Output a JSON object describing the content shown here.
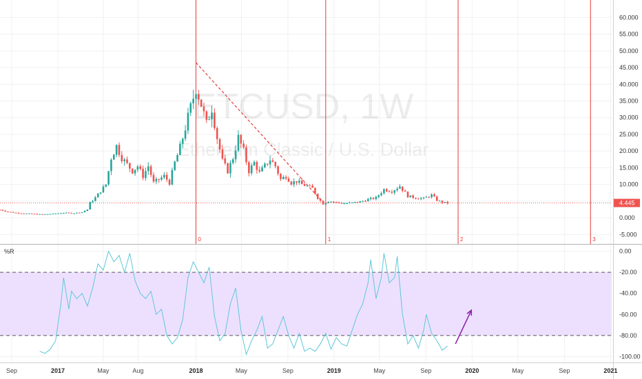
{
  "chart_data": [
    {
      "type": "candlestick",
      "symbol_watermark": "ETCUSD, 1W",
      "description_watermark": "Ethereum Classic / U.S. Dollar",
      "price_label": "4.445",
      "last_price": 4.445,
      "ylim": [
        -7,
        64
      ],
      "yticks": [
        60,
        55,
        50,
        45,
        40,
        35,
        30,
        25,
        20,
        15,
        10,
        5,
        0,
        -5
      ],
      "ytick_labels": [
        "60.000",
        "55.000",
        "50.000",
        "45.000",
        "40.000",
        "35.000",
        "30.000",
        "25.000",
        "20.000",
        "15.000",
        "10.000",
        "5.000",
        "0.000",
        "-5.000"
      ],
      "x_range": [
        "2016-08-01",
        "2021-01-04"
      ],
      "close_series": [
        [
          "2016-08-01",
          2.4
        ],
        [
          "2016-08-22",
          1.8
        ],
        [
          "2016-09-19",
          1.4
        ],
        [
          "2016-10-24",
          1.2
        ],
        [
          "2016-11-21",
          1.0
        ],
        [
          "2016-12-19",
          1.2
        ],
        [
          "2017-01-16",
          1.5
        ],
        [
          "2017-02-13",
          1.4
        ],
        [
          "2017-03-06",
          1.7
        ],
        [
          "2017-03-20",
          2.5
        ],
        [
          "2017-03-27",
          4.5
        ],
        [
          "2017-04-10",
          6.0
        ],
        [
          "2017-04-24",
          8.0
        ],
        [
          "2017-05-08",
          10.0
        ],
        [
          "2017-05-22",
          18.0
        ],
        [
          "2017-06-05",
          21.5
        ],
        [
          "2017-06-19",
          18.0
        ],
        [
          "2017-07-03",
          16.0
        ],
        [
          "2017-07-17",
          14.0
        ],
        [
          "2017-07-31",
          15.5
        ],
        [
          "2017-08-14",
          12.5
        ],
        [
          "2017-08-28",
          15.5
        ],
        [
          "2017-09-11",
          10.5
        ],
        [
          "2017-09-25",
          11.5
        ],
        [
          "2017-10-09",
          12.5
        ],
        [
          "2017-10-23",
          10.5
        ],
        [
          "2017-11-06",
          16.5
        ],
        [
          "2017-11-20",
          21.0
        ],
        [
          "2017-12-04",
          27.0
        ],
        [
          "2017-12-18",
          33.0
        ],
        [
          "2018-01-01",
          39.0
        ],
        [
          "2018-01-15",
          34.0
        ],
        [
          "2018-01-29",
          28.0
        ],
        [
          "2018-02-12",
          33.0
        ],
        [
          "2018-02-26",
          24.0
        ],
        [
          "2018-03-12",
          17.0
        ],
        [
          "2018-03-26",
          14.0
        ],
        [
          "2018-04-09",
          18.0
        ],
        [
          "2018-04-23",
          24.0
        ],
        [
          "2018-05-07",
          20.0
        ],
        [
          "2018-05-21",
          14.0
        ],
        [
          "2018-06-04",
          16.5
        ],
        [
          "2018-06-18",
          13.5
        ],
        [
          "2018-07-02",
          15.5
        ],
        [
          "2018-07-16",
          17.5
        ],
        [
          "2018-07-30",
          15.5
        ],
        [
          "2018-08-13",
          11.5
        ],
        [
          "2018-08-27",
          12.5
        ],
        [
          "2018-09-10",
          10.5
        ],
        [
          "2018-09-24",
          11.0
        ],
        [
          "2018-10-08",
          10.0
        ],
        [
          "2018-10-22",
          9.5
        ],
        [
          "2018-11-05",
          8.8
        ],
        [
          "2018-11-19",
          6.0
        ],
        [
          "2018-12-03",
          4.2
        ],
        [
          "2018-12-17",
          5.0
        ],
        [
          "2019-01-07",
          4.6
        ],
        [
          "2019-01-28",
          4.3
        ],
        [
          "2019-02-18",
          4.5
        ],
        [
          "2019-03-11",
          4.8
        ],
        [
          "2019-04-01",
          5.5
        ],
        [
          "2019-04-22",
          6.0
        ],
        [
          "2019-05-13",
          8.5
        ],
        [
          "2019-06-03",
          8.0
        ],
        [
          "2019-06-24",
          9.5
        ],
        [
          "2019-07-15",
          6.5
        ],
        [
          "2019-08-05",
          6.0
        ],
        [
          "2019-08-26",
          5.8
        ],
        [
          "2019-09-16",
          6.8
        ],
        [
          "2019-09-30",
          5.3
        ],
        [
          "2019-10-14",
          4.6
        ],
        [
          "2019-10-28",
          4.445
        ]
      ],
      "fib_cycles": {
        "start": "2018-01-01",
        "labels": [
          "0",
          "1",
          "2",
          "3"
        ],
        "dates": [
          "2018-01-01",
          "2018-12-10",
          "2019-11-25",
          "2020-11-09"
        ],
        "color": "#e53935"
      },
      "trendline": {
        "from": [
          "2018-01-01",
          46.5
        ],
        "to": [
          "2018-11-26",
          5.5
        ],
        "color": "#e53935",
        "style": "dashed"
      },
      "colors": {
        "up": "#26a69a",
        "down": "#ef5350"
      }
    },
    {
      "type": "line",
      "indicator_label": "%R",
      "ylim": [
        -103,
        3
      ],
      "yticks": [
        0,
        -20,
        -40,
        -60,
        -80,
        -100
      ],
      "ytick_labels": [
        "0.00",
        "-20.00",
        "-40.00",
        "-60.00",
        "-80.00",
        "-100.00"
      ],
      "band": {
        "upper": -20,
        "lower": -80,
        "fill": "#ede0ff",
        "line": "#555"
      },
      "line_color": "#5ec6d8",
      "series": [
        [
          "2016-11-14",
          -95
        ],
        [
          "2016-11-28",
          -97
        ],
        [
          "2016-12-12",
          -93
        ],
        [
          "2016-12-26",
          -85
        ],
        [
          "2017-01-09",
          -50
        ],
        [
          "2017-01-16",
          -25
        ],
        [
          "2017-01-30",
          -55
        ],
        [
          "2017-02-06",
          -38
        ],
        [
          "2017-02-20",
          -45
        ],
        [
          "2017-03-06",
          -40
        ],
        [
          "2017-03-20",
          -52
        ],
        [
          "2017-04-03",
          -35
        ],
        [
          "2017-04-17",
          -12
        ],
        [
          "2017-05-01",
          -18
        ],
        [
          "2017-05-15",
          0
        ],
        [
          "2017-05-29",
          -10
        ],
        [
          "2017-06-12",
          -4
        ],
        [
          "2017-06-26",
          -20
        ],
        [
          "2017-07-10",
          -2
        ],
        [
          "2017-07-24",
          -28
        ],
        [
          "2017-08-07",
          -40
        ],
        [
          "2017-08-21",
          -45
        ],
        [
          "2017-09-04",
          -38
        ],
        [
          "2017-09-18",
          -60
        ],
        [
          "2017-10-02",
          -55
        ],
        [
          "2017-10-16",
          -80
        ],
        [
          "2017-10-30",
          -88
        ],
        [
          "2017-11-13",
          -82
        ],
        [
          "2017-11-27",
          -65
        ],
        [
          "2017-12-11",
          -25
        ],
        [
          "2017-12-25",
          -10
        ],
        [
          "2018-01-08",
          -20
        ],
        [
          "2018-01-22",
          -30
        ],
        [
          "2018-02-05",
          -15
        ],
        [
          "2018-02-19",
          -62
        ],
        [
          "2018-03-05",
          -85
        ],
        [
          "2018-03-19",
          -78
        ],
        [
          "2018-04-02",
          -50
        ],
        [
          "2018-04-16",
          -35
        ],
        [
          "2018-04-30",
          -75
        ],
        [
          "2018-05-14",
          -98
        ],
        [
          "2018-05-28",
          -85
        ],
        [
          "2018-06-11",
          -75
        ],
        [
          "2018-06-25",
          -62
        ],
        [
          "2018-07-09",
          -92
        ],
        [
          "2018-07-23",
          -88
        ],
        [
          "2018-08-06",
          -75
        ],
        [
          "2018-08-20",
          -62
        ],
        [
          "2018-09-03",
          -80
        ],
        [
          "2018-09-17",
          -92
        ],
        [
          "2018-10-01",
          -78
        ],
        [
          "2018-10-15",
          -95
        ],
        [
          "2018-10-29",
          -92
        ],
        [
          "2018-11-12",
          -95
        ],
        [
          "2018-11-26",
          -88
        ],
        [
          "2018-12-10",
          -78
        ],
        [
          "2018-12-24",
          -93
        ],
        [
          "2019-01-07",
          -82
        ],
        [
          "2019-01-21",
          -88
        ],
        [
          "2019-02-04",
          -90
        ],
        [
          "2019-02-18",
          -75
        ],
        [
          "2019-03-04",
          -60
        ],
        [
          "2019-03-18",
          -50
        ],
        [
          "2019-04-01",
          -30
        ],
        [
          "2019-04-08",
          -8
        ],
        [
          "2019-04-22",
          -45
        ],
        [
          "2019-05-06",
          -25
        ],
        [
          "2019-05-13",
          -2
        ],
        [
          "2019-05-27",
          -30
        ],
        [
          "2019-06-10",
          -25
        ],
        [
          "2019-06-17",
          -5
        ],
        [
          "2019-07-01",
          -60
        ],
        [
          "2019-07-15",
          -88
        ],
        [
          "2019-07-29",
          -80
        ],
        [
          "2019-08-12",
          -92
        ],
        [
          "2019-08-26",
          -75
        ],
        [
          "2019-09-02",
          -60
        ],
        [
          "2019-09-16",
          -78
        ],
        [
          "2019-09-30",
          -85
        ],
        [
          "2019-10-14",
          -94
        ],
        [
          "2019-10-21",
          -92
        ],
        [
          "2019-10-28",
          -90
        ]
      ],
      "arrow": {
        "from": [
          "2019-11-18",
          -88
        ],
        "to": [
          "2019-12-30",
          -56
        ],
        "color": "#8e24aa"
      }
    }
  ],
  "x_axis": {
    "labels": [
      {
        "text": "Sep",
        "date": "2016-09-01",
        "year": false
      },
      {
        "text": "2017",
        "date": "2017-01-01",
        "year": true
      },
      {
        "text": "May",
        "date": "2017-05-01",
        "year": false
      },
      {
        "text": "Aug",
        "date": "2017-08-01",
        "year": false
      },
      {
        "text": "2018",
        "date": "2018-01-01",
        "year": true
      },
      {
        "text": "May",
        "date": "2018-05-01",
        "year": false
      },
      {
        "text": "Sep",
        "date": "2018-09-01",
        "year": false
      },
      {
        "text": "2019",
        "date": "2019-01-01",
        "year": true
      },
      {
        "text": "May",
        "date": "2019-05-01",
        "year": false
      },
      {
        "text": "Sep",
        "date": "2019-09-01",
        "year": false
      },
      {
        "text": "2020",
        "date": "2020-01-01",
        "year": true
      },
      {
        "text": "May",
        "date": "2020-05-01",
        "year": false
      },
      {
        "text": "Sep",
        "date": "2020-09-01",
        "year": false
      },
      {
        "text": "2021",
        "date": "2021-01-01",
        "year": true
      }
    ]
  }
}
